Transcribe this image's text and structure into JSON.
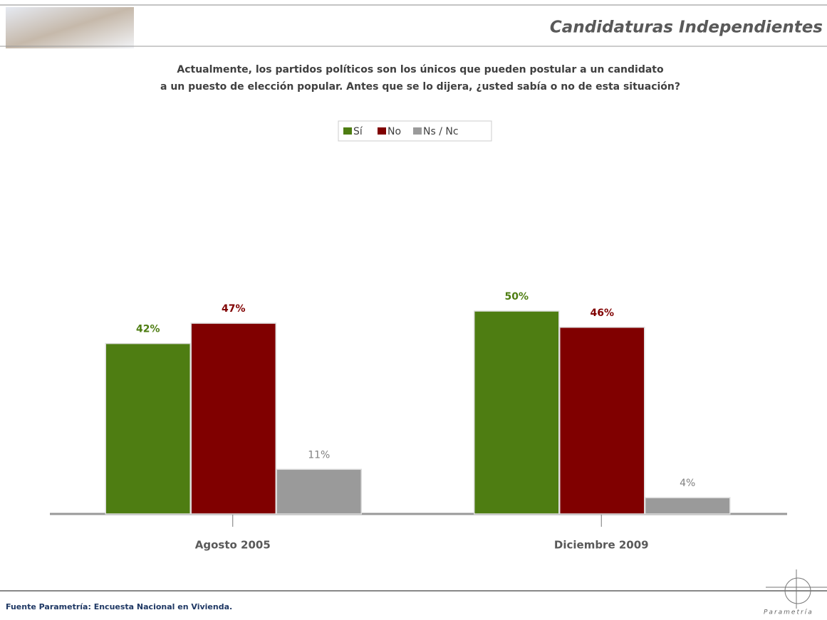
{
  "header": {
    "title": "Candidaturas Independientes"
  },
  "chart_data": {
    "type": "bar",
    "title": "Actualmente, los partidos políticos son los únicos que pueden postular a un candidato\na un puesto de elección popular. Antes que se lo dijera, ¿usted sabía o no de esta situación?",
    "categories": [
      "Agosto 2005",
      "Diciembre 2009"
    ],
    "series": [
      {
        "name": "Sí",
        "color": "#4e7d12",
        "values": [
          42,
          50
        ],
        "value_labels": [
          "42%",
          "50%"
        ]
      },
      {
        "name": "No",
        "color": "#800000",
        "values": [
          47,
          46
        ],
        "value_labels": [
          "47%",
          "46%"
        ]
      },
      {
        "name": "Ns / Nc",
        "color": "#9a9a9a",
        "values": [
          11,
          4
        ],
        "value_labels": [
          "11%",
          "4%"
        ]
      }
    ],
    "legend": "top"
  },
  "footer": {
    "source": "Fuente Parametría: Encuesta Nacional en Vivienda.",
    "logo": "Parametría"
  }
}
